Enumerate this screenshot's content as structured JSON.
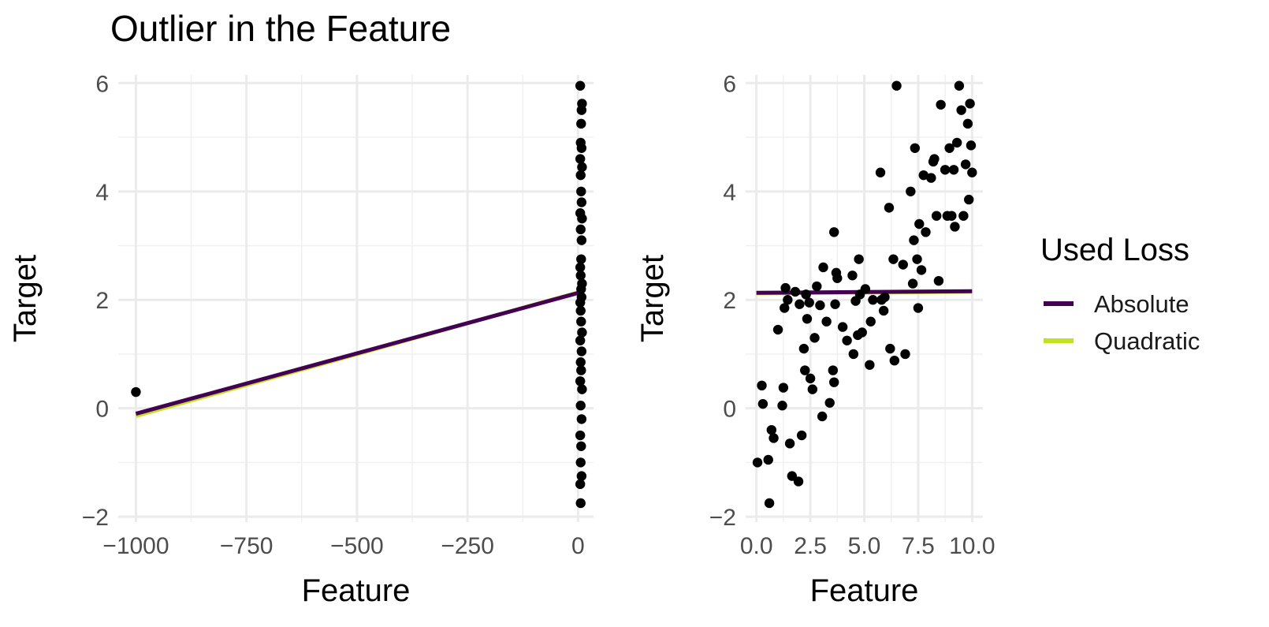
{
  "title": "Outlier in the Feature",
  "legend": {
    "title": "Used Loss",
    "items": [
      {
        "label": "Absolute",
        "color": "#440154"
      },
      {
        "label": "Quadratic",
        "color": "#C2E120"
      }
    ]
  },
  "chart_data": [
    {
      "type": "scatter",
      "xlabel": "Feature",
      "ylabel": "Target",
      "xlim": [
        -1040,
        35
      ],
      "ylim": [
        -2.1,
        6.15
      ],
      "x_ticks": [
        -1000,
        -750,
        -500,
        -250,
        0
      ],
      "x_tick_labels": [
        "−1000",
        "−750",
        "−500",
        "−250",
        "0"
      ],
      "y_ticks": [
        -2,
        0,
        2,
        4,
        6
      ],
      "y_tick_labels": [
        "−2",
        "0",
        "2",
        "4",
        "6"
      ],
      "grid": true,
      "points": [
        {
          "x": -1000,
          "y": 0.3
        },
        {
          "x": 5,
          "y": 5.95
        },
        {
          "x": 9,
          "y": 5.62
        },
        {
          "x": 8,
          "y": 5.5
        },
        {
          "x": 7,
          "y": 5.25
        },
        {
          "x": 6,
          "y": 4.9
        },
        {
          "x": 8,
          "y": 4.8
        },
        {
          "x": 5,
          "y": 4.6
        },
        {
          "x": 9,
          "y": 4.45
        },
        {
          "x": 6,
          "y": 4.3
        },
        {
          "x": 7,
          "y": 4.0
        },
        {
          "x": 8,
          "y": 3.8
        },
        {
          "x": 5,
          "y": 3.6
        },
        {
          "x": 9,
          "y": 3.5
        },
        {
          "x": 6,
          "y": 3.3
        },
        {
          "x": 8,
          "y": 3.1
        },
        {
          "x": 7,
          "y": 2.75
        },
        {
          "x": 5,
          "y": 2.6
        },
        {
          "x": 6,
          "y": 2.45
        },
        {
          "x": 9,
          "y": 2.3
        },
        {
          "x": 7,
          "y": 2.2
        },
        {
          "x": 8,
          "y": 2.05
        },
        {
          "x": 5,
          "y": 1.95
        },
        {
          "x": 6,
          "y": 1.8
        },
        {
          "x": 7,
          "y": 1.6
        },
        {
          "x": 9,
          "y": 1.4
        },
        {
          "x": 5,
          "y": 1.25
        },
        {
          "x": 8,
          "y": 1.05
        },
        {
          "x": 6,
          "y": 0.85
        },
        {
          "x": 7,
          "y": 0.7
        },
        {
          "x": 5,
          "y": 0.5
        },
        {
          "x": 9,
          "y": 0.35
        },
        {
          "x": 6,
          "y": 0.05
        },
        {
          "x": 8,
          "y": -0.2
        },
        {
          "x": 5,
          "y": -0.5
        },
        {
          "x": 7,
          "y": -0.7
        },
        {
          "x": 6,
          "y": -1.0
        },
        {
          "x": 8,
          "y": -1.25
        },
        {
          "x": 5,
          "y": -1.4
        },
        {
          "x": 6,
          "y": -1.75
        }
      ],
      "lines": [
        {
          "name": "Quadratic",
          "color": "#C2E120",
          "x": [
            -1000,
            10
          ],
          "y": [
            -0.14,
            2.16
          ]
        },
        {
          "name": "Absolute",
          "color": "#440154",
          "x": [
            -1000,
            10
          ],
          "y": [
            -0.1,
            2.15
          ]
        }
      ]
    },
    {
      "type": "scatter",
      "xlabel": "Feature",
      "ylabel": "Target",
      "xlim": [
        -0.5,
        10.5
      ],
      "ylim": [
        -2.1,
        6.15
      ],
      "x_ticks": [
        0,
        2.5,
        5,
        7.5,
        10
      ],
      "x_tick_labels": [
        "0.0",
        "2.5",
        "5.0",
        "7.5",
        "10.0"
      ],
      "y_ticks": [
        -2,
        0,
        2,
        4,
        6
      ],
      "y_tick_labels": [
        "−2",
        "0",
        "2",
        "4",
        "6"
      ],
      "grid": true,
      "points": [
        {
          "x": 0.05,
          "y": -1.0
        },
        {
          "x": 0.25,
          "y": 0.42
        },
        {
          "x": 0.3,
          "y": 0.08
        },
        {
          "x": 0.55,
          "y": -0.95
        },
        {
          "x": 0.6,
          "y": -1.75
        },
        {
          "x": 0.7,
          "y": -0.4
        },
        {
          "x": 0.8,
          "y": -0.55
        },
        {
          "x": 1.0,
          "y": 1.45
        },
        {
          "x": 1.2,
          "y": 0.05
        },
        {
          "x": 1.25,
          "y": 0.38
        },
        {
          "x": 1.3,
          "y": 1.85
        },
        {
          "x": 1.35,
          "y": 2.22
        },
        {
          "x": 1.45,
          "y": 2.0
        },
        {
          "x": 1.55,
          "y": -0.65
        },
        {
          "x": 1.65,
          "y": -1.25
        },
        {
          "x": 1.8,
          "y": 2.15
        },
        {
          "x": 1.95,
          "y": -1.35
        },
        {
          "x": 2.0,
          "y": 1.92
        },
        {
          "x": 2.1,
          "y": -0.5
        },
        {
          "x": 2.2,
          "y": 1.1
        },
        {
          "x": 2.25,
          "y": 0.7
        },
        {
          "x": 2.3,
          "y": 2.1
        },
        {
          "x": 2.35,
          "y": 1.65
        },
        {
          "x": 2.45,
          "y": 1.95
        },
        {
          "x": 2.5,
          "y": 0.55
        },
        {
          "x": 2.6,
          "y": 0.35
        },
        {
          "x": 2.7,
          "y": 1.3
        },
        {
          "x": 2.8,
          "y": 2.25
        },
        {
          "x": 2.95,
          "y": 1.9
        },
        {
          "x": 3.05,
          "y": -0.15
        },
        {
          "x": 3.1,
          "y": 2.6
        },
        {
          "x": 3.25,
          "y": 1.6
        },
        {
          "x": 3.4,
          "y": 0.1
        },
        {
          "x": 3.55,
          "y": 0.7
        },
        {
          "x": 3.6,
          "y": 3.25
        },
        {
          "x": 3.6,
          "y": 0.48
        },
        {
          "x": 3.65,
          "y": 1.92
        },
        {
          "x": 3.7,
          "y": 2.5
        },
        {
          "x": 3.75,
          "y": 2.4
        },
        {
          "x": 4.0,
          "y": 1.5
        },
        {
          "x": 4.2,
          "y": 1.25
        },
        {
          "x": 4.45,
          "y": 2.45
        },
        {
          "x": 4.5,
          "y": 1.0
        },
        {
          "x": 4.6,
          "y": 1.98
        },
        {
          "x": 4.7,
          "y": 1.35
        },
        {
          "x": 4.75,
          "y": 2.75
        },
        {
          "x": 4.8,
          "y": 2.1
        },
        {
          "x": 4.9,
          "y": 1.4
        },
        {
          "x": 5.05,
          "y": 2.2
        },
        {
          "x": 5.25,
          "y": 0.8
        },
        {
          "x": 5.3,
          "y": 1.6
        },
        {
          "x": 5.4,
          "y": 2.0
        },
        {
          "x": 5.75,
          "y": 4.35
        },
        {
          "x": 5.8,
          "y": 2.0
        },
        {
          "x": 5.9,
          "y": 1.8
        },
        {
          "x": 5.95,
          "y": 2.05
        },
        {
          "x": 6.15,
          "y": 3.7
        },
        {
          "x": 6.2,
          "y": 1.1
        },
        {
          "x": 6.35,
          "y": 2.75
        },
        {
          "x": 6.4,
          "y": 0.88
        },
        {
          "x": 6.5,
          "y": 5.95
        },
        {
          "x": 6.8,
          "y": 2.65
        },
        {
          "x": 6.9,
          "y": 1.0
        },
        {
          "x": 7.15,
          "y": 4.0
        },
        {
          "x": 7.25,
          "y": 2.3
        },
        {
          "x": 7.3,
          "y": 3.1
        },
        {
          "x": 7.35,
          "y": 4.8
        },
        {
          "x": 7.45,
          "y": 2.75
        },
        {
          "x": 7.5,
          "y": 1.85
        },
        {
          "x": 7.55,
          "y": 3.4
        },
        {
          "x": 7.65,
          "y": 2.55
        },
        {
          "x": 7.75,
          "y": 4.3
        },
        {
          "x": 7.85,
          "y": 3.25
        },
        {
          "x": 8.1,
          "y": 4.25
        },
        {
          "x": 8.2,
          "y": 4.55
        },
        {
          "x": 8.25,
          "y": 4.6
        },
        {
          "x": 8.35,
          "y": 3.55
        },
        {
          "x": 8.45,
          "y": 2.35
        },
        {
          "x": 8.55,
          "y": 5.6
        },
        {
          "x": 8.75,
          "y": 4.4
        },
        {
          "x": 8.85,
          "y": 3.55
        },
        {
          "x": 8.95,
          "y": 4.8
        },
        {
          "x": 9.05,
          "y": 3.55
        },
        {
          "x": 9.15,
          "y": 4.4
        },
        {
          "x": 9.2,
          "y": 3.35
        },
        {
          "x": 9.3,
          "y": 4.9
        },
        {
          "x": 9.4,
          "y": 5.95
        },
        {
          "x": 9.5,
          "y": 5.5
        },
        {
          "x": 9.6,
          "y": 3.55
        },
        {
          "x": 9.7,
          "y": 4.5
        },
        {
          "x": 9.8,
          "y": 5.25
        },
        {
          "x": 9.85,
          "y": 3.85
        },
        {
          "x": 9.9,
          "y": 5.62
        },
        {
          "x": 9.95,
          "y": 4.85
        },
        {
          "x": 10.0,
          "y": 4.35
        }
      ],
      "lines": [
        {
          "name": "Quadratic",
          "color": "#C2E120",
          "x": [
            0,
            10
          ],
          "y": [
            2.12,
            2.15
          ]
        },
        {
          "name": "Absolute",
          "color": "#440154",
          "x": [
            0,
            10
          ],
          "y": [
            2.13,
            2.16
          ]
        }
      ]
    }
  ]
}
